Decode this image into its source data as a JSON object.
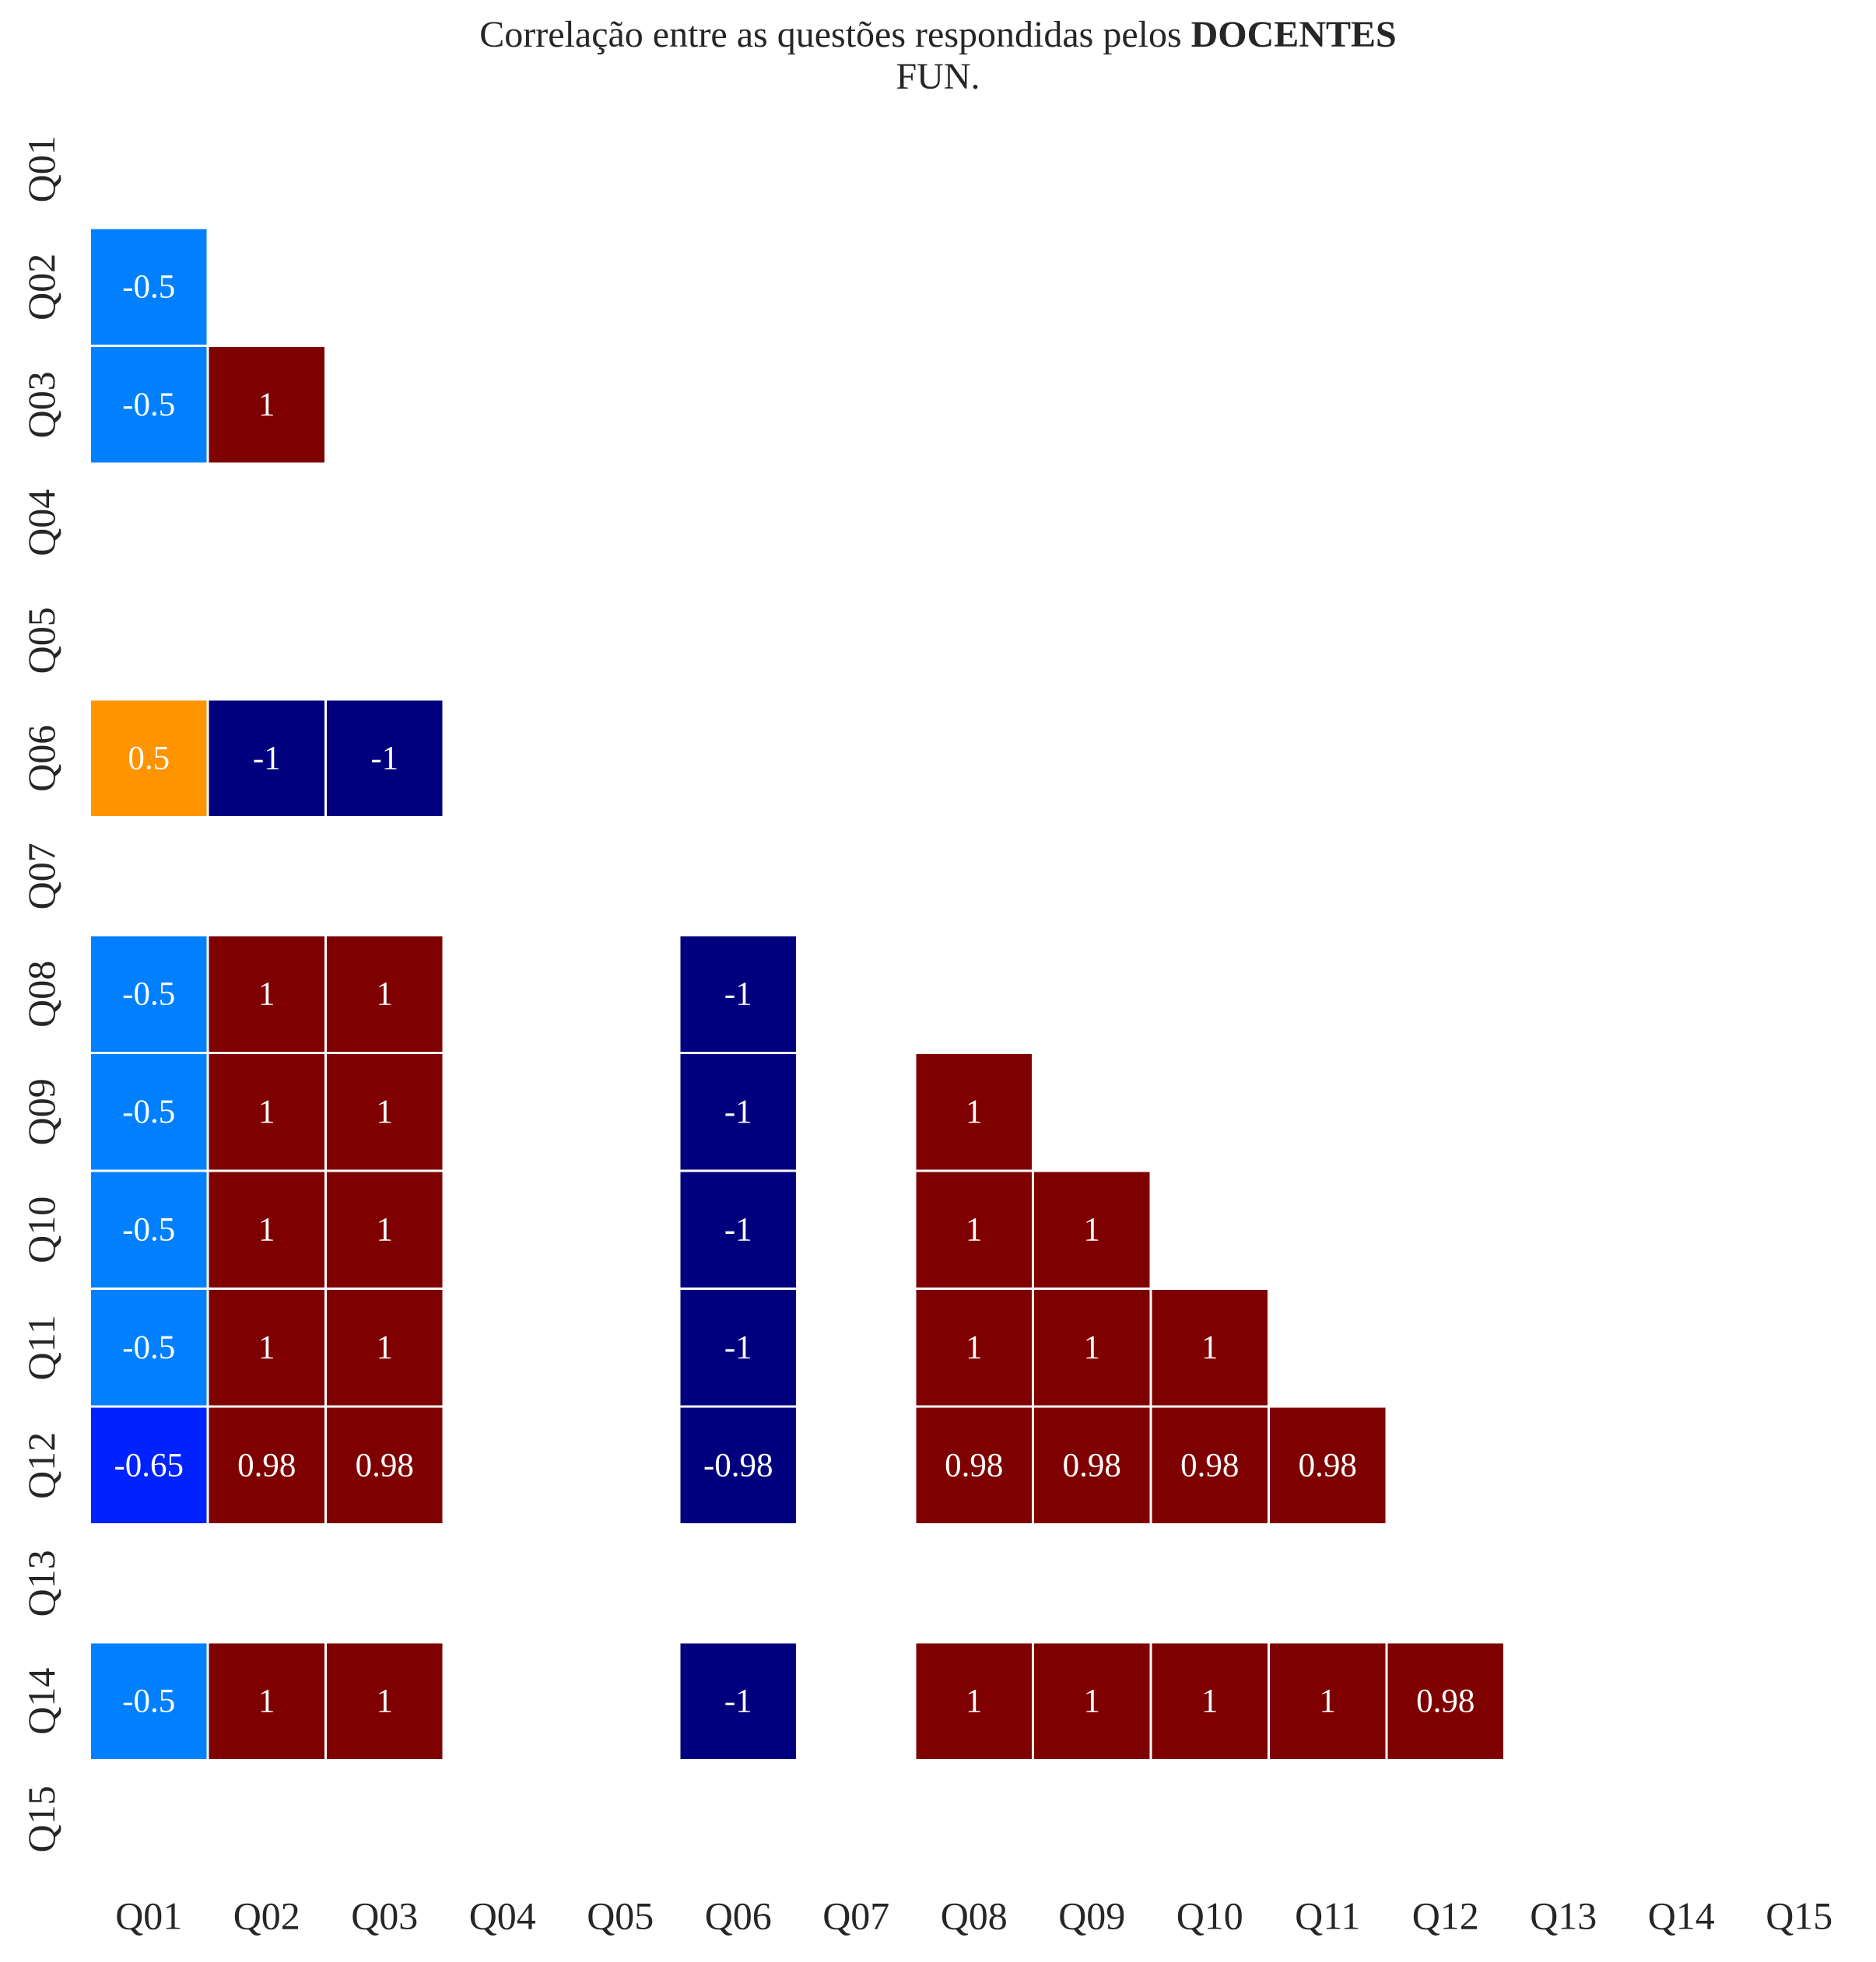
{
  "chart_data": {
    "type": "heatmap",
    "title": {
      "prefix": "Correlação entre as questões respondidas pelos ",
      "bold": "DOCENTES",
      "subtitle": "FUN."
    },
    "x_labels": [
      "Q01",
      "Q02",
      "Q03",
      "Q04",
      "Q05",
      "Q06",
      "Q07",
      "Q08",
      "Q09",
      "Q10",
      "Q11",
      "Q12",
      "Q13",
      "Q14",
      "Q15"
    ],
    "y_labels": [
      "Q01",
      "Q02",
      "Q03",
      "Q04",
      "Q05",
      "Q06",
      "Q07",
      "Q08",
      "Q09",
      "Q10",
      "Q11",
      "Q12",
      "Q13",
      "Q14",
      "Q15"
    ],
    "value_range": [
      -1,
      1
    ],
    "colormap": "jet",
    "mask": "lower triangle shown, diagonal and blank (NaN) cells hidden",
    "cells": [
      {
        "row": "Q02",
        "col": "Q01",
        "value": -0.5,
        "label": "-0.5"
      },
      {
        "row": "Q03",
        "col": "Q01",
        "value": -0.5,
        "label": "-0.5"
      },
      {
        "row": "Q03",
        "col": "Q02",
        "value": 1,
        "label": "1"
      },
      {
        "row": "Q06",
        "col": "Q01",
        "value": 0.5,
        "label": "0.5"
      },
      {
        "row": "Q06",
        "col": "Q02",
        "value": -1,
        "label": "-1"
      },
      {
        "row": "Q06",
        "col": "Q03",
        "value": -1,
        "label": "-1"
      },
      {
        "row": "Q08",
        "col": "Q01",
        "value": -0.5,
        "label": "-0.5"
      },
      {
        "row": "Q08",
        "col": "Q02",
        "value": 1,
        "label": "1"
      },
      {
        "row": "Q08",
        "col": "Q03",
        "value": 1,
        "label": "1"
      },
      {
        "row": "Q08",
        "col": "Q06",
        "value": -1,
        "label": "-1"
      },
      {
        "row": "Q09",
        "col": "Q01",
        "value": -0.5,
        "label": "-0.5"
      },
      {
        "row": "Q09",
        "col": "Q02",
        "value": 1,
        "label": "1"
      },
      {
        "row": "Q09",
        "col": "Q03",
        "value": 1,
        "label": "1"
      },
      {
        "row": "Q09",
        "col": "Q06",
        "value": -1,
        "label": "-1"
      },
      {
        "row": "Q09",
        "col": "Q08",
        "value": 1,
        "label": "1"
      },
      {
        "row": "Q10",
        "col": "Q01",
        "value": -0.5,
        "label": "-0.5"
      },
      {
        "row": "Q10",
        "col": "Q02",
        "value": 1,
        "label": "1"
      },
      {
        "row": "Q10",
        "col": "Q03",
        "value": 1,
        "label": "1"
      },
      {
        "row": "Q10",
        "col": "Q06",
        "value": -1,
        "label": "-1"
      },
      {
        "row": "Q10",
        "col": "Q08",
        "value": 1,
        "label": "1"
      },
      {
        "row": "Q10",
        "col": "Q09",
        "value": 1,
        "label": "1"
      },
      {
        "row": "Q11",
        "col": "Q01",
        "value": -0.5,
        "label": "-0.5"
      },
      {
        "row": "Q11",
        "col": "Q02",
        "value": 1,
        "label": "1"
      },
      {
        "row": "Q11",
        "col": "Q03",
        "value": 1,
        "label": "1"
      },
      {
        "row": "Q11",
        "col": "Q06",
        "value": -1,
        "label": "-1"
      },
      {
        "row": "Q11",
        "col": "Q08",
        "value": 1,
        "label": "1"
      },
      {
        "row": "Q11",
        "col": "Q09",
        "value": 1,
        "label": "1"
      },
      {
        "row": "Q11",
        "col": "Q10",
        "value": 1,
        "label": "1"
      },
      {
        "row": "Q12",
        "col": "Q01",
        "value": -0.65,
        "label": "-0.65"
      },
      {
        "row": "Q12",
        "col": "Q02",
        "value": 0.98,
        "label": "0.98"
      },
      {
        "row": "Q12",
        "col": "Q03",
        "value": 0.98,
        "label": "0.98"
      },
      {
        "row": "Q12",
        "col": "Q06",
        "value": -0.98,
        "label": "-0.98"
      },
      {
        "row": "Q12",
        "col": "Q08",
        "value": 0.98,
        "label": "0.98"
      },
      {
        "row": "Q12",
        "col": "Q09",
        "value": 0.98,
        "label": "0.98"
      },
      {
        "row": "Q12",
        "col": "Q10",
        "value": 0.98,
        "label": "0.98"
      },
      {
        "row": "Q12",
        "col": "Q11",
        "value": 0.98,
        "label": "0.98"
      },
      {
        "row": "Q14",
        "col": "Q01",
        "value": -0.5,
        "label": "-0.5"
      },
      {
        "row": "Q14",
        "col": "Q02",
        "value": 1,
        "label": "1"
      },
      {
        "row": "Q14",
        "col": "Q03",
        "value": 1,
        "label": "1"
      },
      {
        "row": "Q14",
        "col": "Q06",
        "value": -1,
        "label": "-1"
      },
      {
        "row": "Q14",
        "col": "Q08",
        "value": 1,
        "label": "1"
      },
      {
        "row": "Q14",
        "col": "Q09",
        "value": 1,
        "label": "1"
      },
      {
        "row": "Q14",
        "col": "Q10",
        "value": 1,
        "label": "1"
      },
      {
        "row": "Q14",
        "col": "Q11",
        "value": 1,
        "label": "1"
      },
      {
        "row": "Q14",
        "col": "Q12",
        "value": 0.98,
        "label": "0.98"
      }
    ],
    "colors": {
      "-1": "#00007f",
      "-0.98": "#00007f",
      "-0.65": "#0022ff",
      "-0.5": "#0080ff",
      "0.5": "#ff9400",
      "0.98": "#7f0000",
      "1": "#7f0000"
    }
  }
}
